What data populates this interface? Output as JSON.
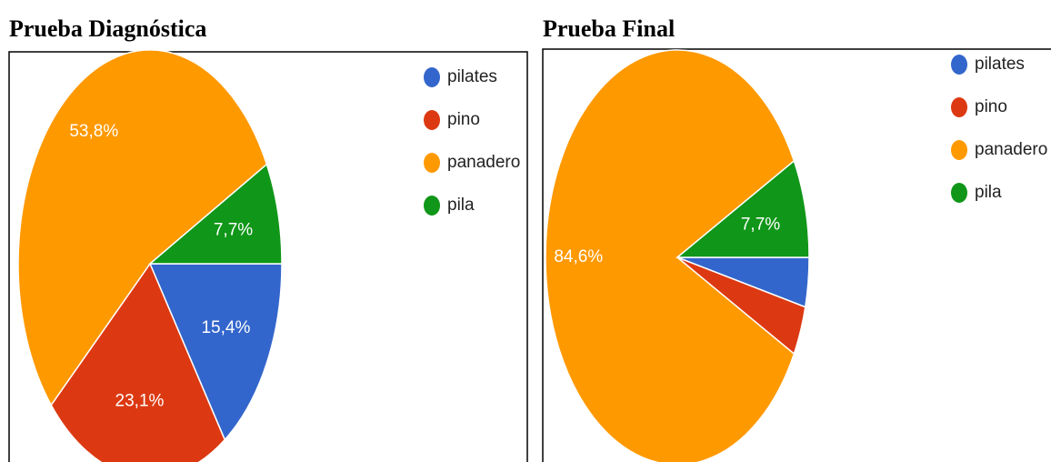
{
  "chart_data": [
    {
      "type": "pie",
      "title": "Prueba Diagnóstica",
      "categories": [
        "pilates",
        "pino",
        "panadero",
        "pila"
      ],
      "values": [
        15.4,
        23.1,
        53.8,
        7.7
      ],
      "value_labels": [
        "15,4%",
        "23,1%",
        "53,8%",
        "7,7%"
      ],
      "colors": [
        "#3366cc",
        "#dc3912",
        "#ff9900",
        "#109618"
      ]
    },
    {
      "type": "pie",
      "title": "Prueba Final",
      "categories": [
        "pilates",
        "pino",
        "panadero",
        "pila"
      ],
      "values": [
        3.85,
        3.85,
        84.6,
        7.7
      ],
      "value_labels": [
        null,
        null,
        "84,6%",
        "7,7%"
      ],
      "colors": [
        "#3366cc",
        "#dc3912",
        "#ff9900",
        "#109618"
      ]
    }
  ]
}
